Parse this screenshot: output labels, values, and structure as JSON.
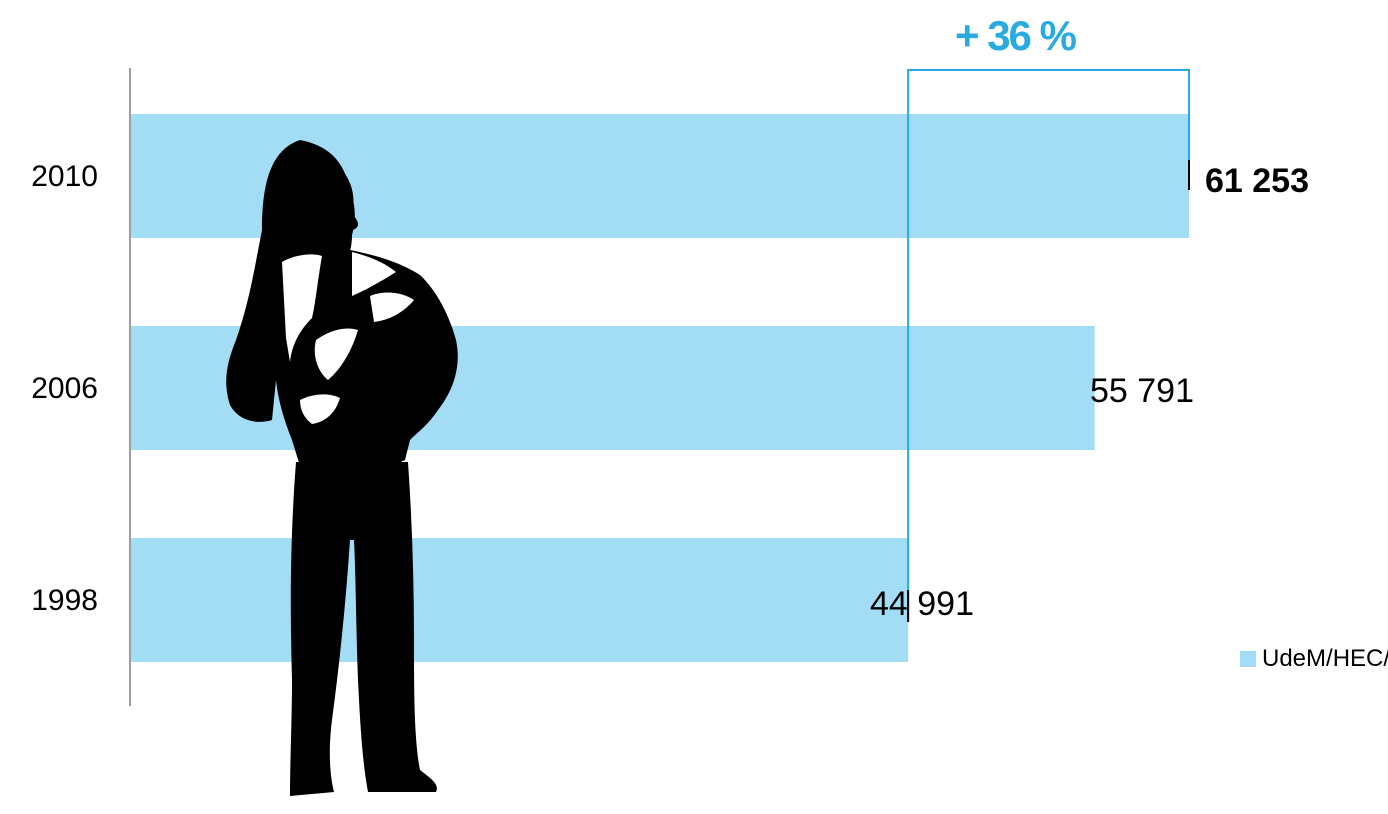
{
  "colors": {
    "bar": "#a2dcf5",
    "accent": "#29abe2",
    "axis": "#7f7f7f",
    "silhouette": "#000000"
  },
  "growth_label": "+ 36 %",
  "legend": {
    "label": "UdeM/HEC/Poly"
  },
  "illustration": {
    "icon": "student-silhouette-icon"
  },
  "chart_data": {
    "type": "bar",
    "orientation": "horizontal",
    "categories": [
      "2010",
      "2006",
      "1998"
    ],
    "series": [
      {
        "name": "UdeM/HEC/Poly",
        "values": [
          61253,
          55791,
          44991
        ]
      }
    ],
    "value_labels": [
      "61 253",
      "55 791",
      "44 991"
    ],
    "highlight_category": "2010",
    "xlim": [
      0,
      61253
    ],
    "grid": false,
    "legend_position": "bottom-right",
    "title": "",
    "xlabel": "",
    "ylabel": ""
  }
}
